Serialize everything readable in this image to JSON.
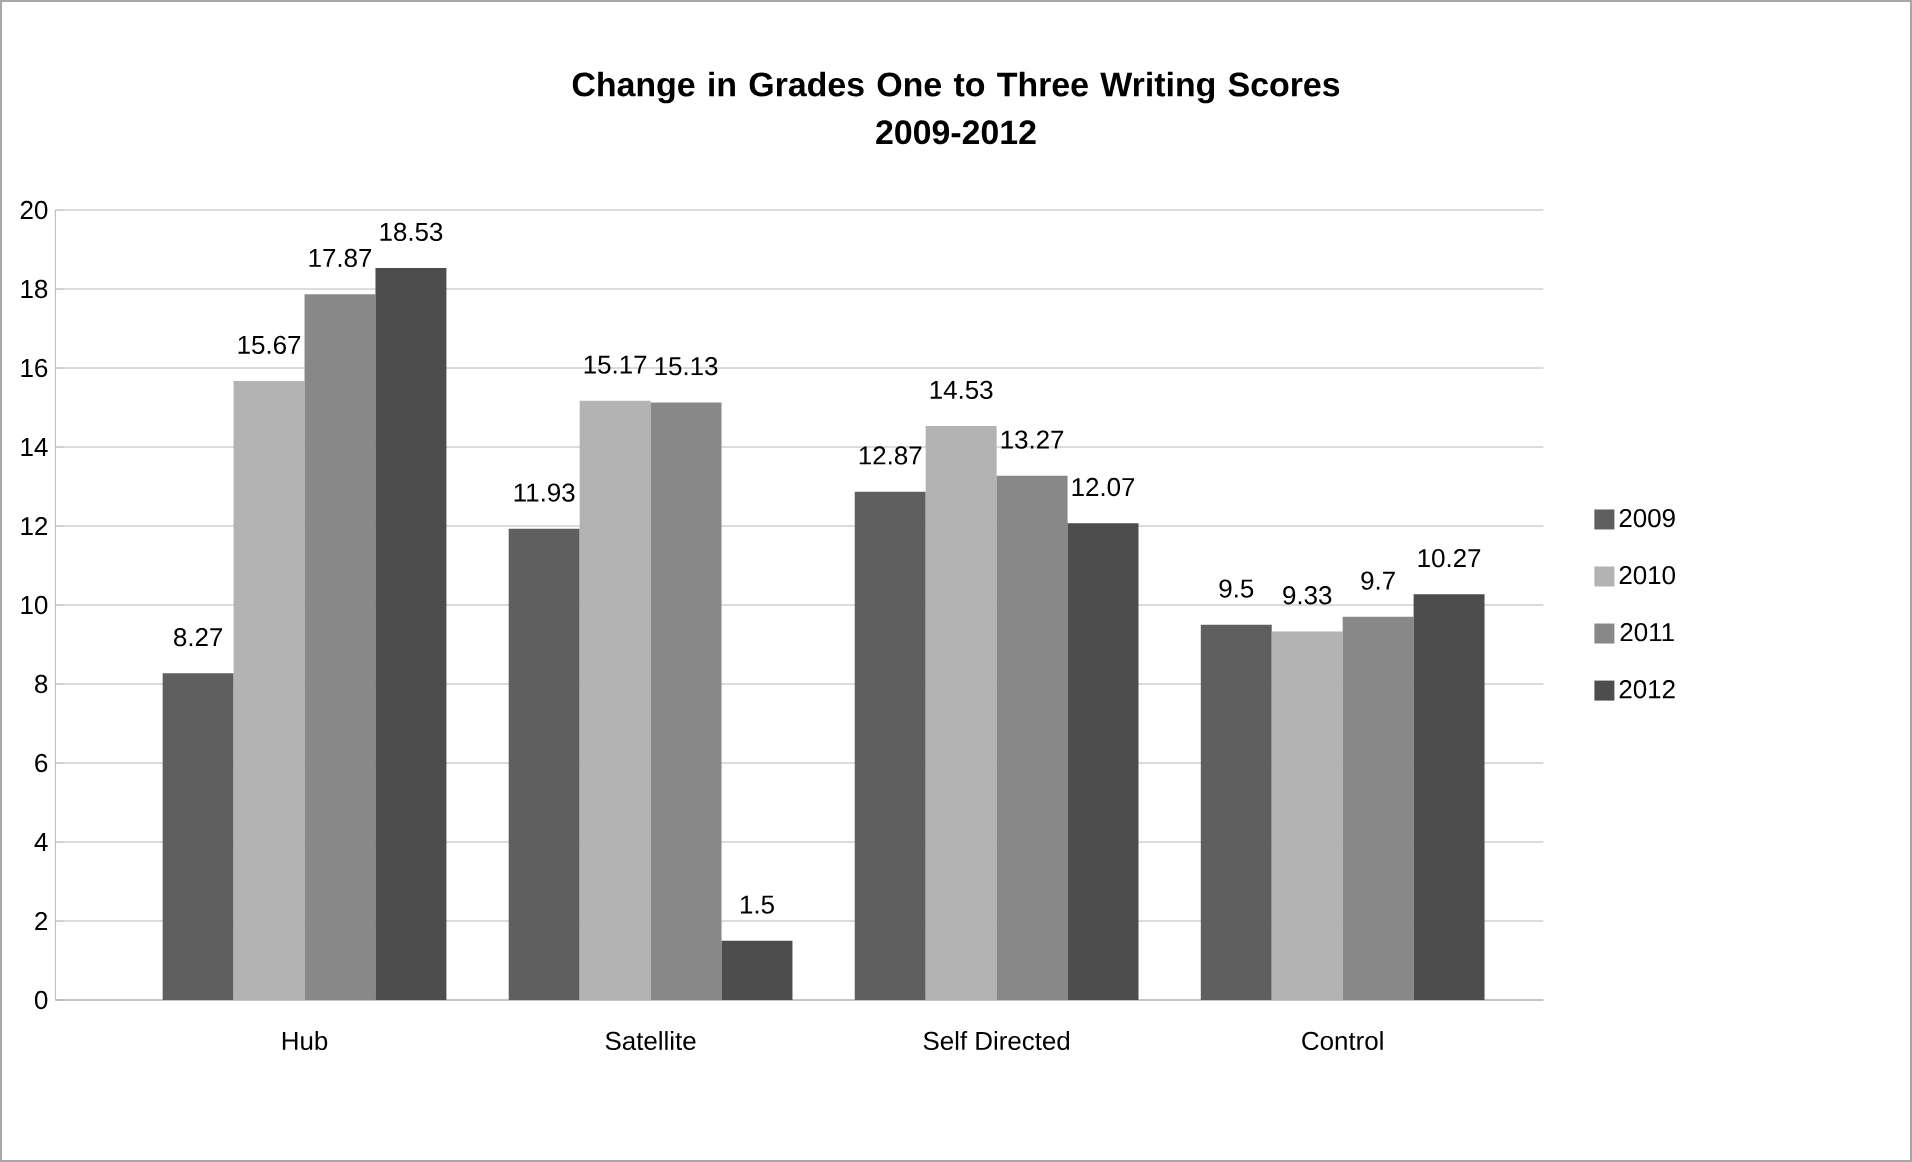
{
  "chart_data": {
    "type": "bar",
    "title": "Change in Grades One to Three Writing Scores\n2009-2012",
    "categories": [
      "Hub",
      "Satellite",
      "Self Directed",
      "Control"
    ],
    "series": [
      {
        "name": "2009",
        "color": "#5f5f5f",
        "values": [
          8.27,
          11.93,
          12.87,
          9.5
        ]
      },
      {
        "name": "2010",
        "color": "#b3b3b3",
        "values": [
          15.67,
          15.17,
          14.53,
          9.33
        ]
      },
      {
        "name": "2011",
        "color": "#888888",
        "values": [
          17.87,
          15.13,
          13.27,
          9.7
        ]
      },
      {
        "name": "2012",
        "color": "#4d4d4d",
        "values": [
          18.53,
          1.5,
          12.07,
          10.27
        ]
      }
    ],
    "ylim": [
      0,
      20
    ],
    "yticks": [
      0,
      2,
      4,
      6,
      8,
      10,
      12,
      14,
      16,
      18,
      20
    ],
    "grid": "y",
    "legend": "right",
    "data_labels": true
  }
}
